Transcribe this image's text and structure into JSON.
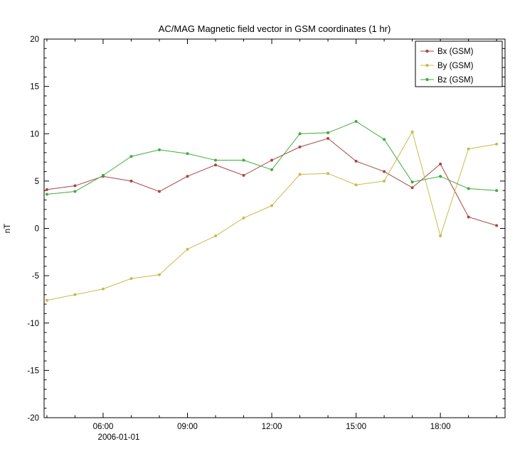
{
  "chart_data": {
    "type": "line",
    "title": "AC/MAG  Magnetic field vector in GSM coordinates (1 hr)",
    "ylabel": "nT",
    "ylim": [
      -20,
      20
    ],
    "ytick_major_step": 5,
    "ytick_minor_step": 1,
    "ytick_labels": [
      "-20",
      "-15",
      "-10",
      "-5",
      "0",
      "5",
      "10",
      "15",
      "20"
    ],
    "xlim_hours": [
      3.9,
      20.3
    ],
    "x_hours": [
      4,
      5,
      6,
      7,
      8,
      9,
      10,
      11,
      12,
      13,
      14,
      15,
      16,
      17,
      18,
      19,
      20
    ],
    "xticks": [
      {
        "hour": 6,
        "label": "06:00"
      },
      {
        "hour": 9,
        "label": "09:00"
      },
      {
        "hour": 12,
        "label": "12:00"
      },
      {
        "hour": 15,
        "label": "15:00"
      },
      {
        "hour": 18,
        "label": "18:00"
      }
    ],
    "xtick_minor_every_hours": 1,
    "date_label": "2006-01-01",
    "grid": false,
    "legend_position": "top-right",
    "series": [
      {
        "name": "Bx (GSM)",
        "color": "#aa4444",
        "values": [
          4.1,
          4.5,
          5.5,
          5.0,
          3.9,
          5.5,
          6.7,
          5.6,
          7.2,
          8.6,
          9.5,
          7.1,
          6.0,
          4.3,
          6.8,
          1.2,
          0.3
        ]
      },
      {
        "name": "By (GSM)",
        "color": "#c8bb4b",
        "values": [
          -7.6,
          -7.0,
          -6.4,
          -5.3,
          -4.9,
          -2.2,
          -0.8,
          1.1,
          2.4,
          5.7,
          5.8,
          4.6,
          5.0,
          10.2,
          -0.8,
          8.4,
          8.9
        ]
      },
      {
        "name": "Bz (GSM)",
        "color": "#3faa3f",
        "values": [
          3.6,
          3.9,
          5.6,
          7.6,
          8.3,
          7.9,
          7.2,
          7.2,
          6.2,
          10.0,
          10.1,
          11.3,
          9.4,
          4.9,
          5.5,
          4.2,
          4.0
        ]
      }
    ],
    "colors": {
      "axis": "#000000",
      "background": "#ffffff",
      "text": "#000000"
    }
  }
}
